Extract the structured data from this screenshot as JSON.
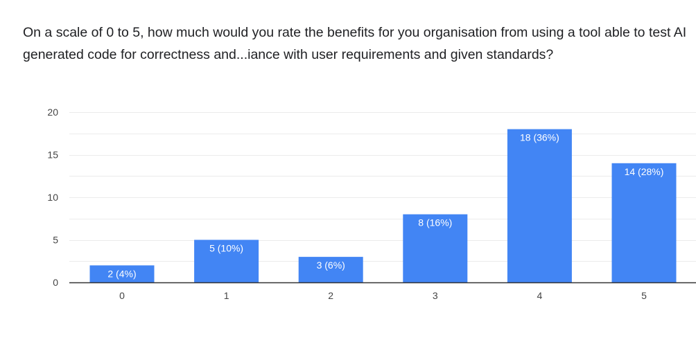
{
  "question": "On a scale of 0 to 5, how much would you rate the benefits for you organisation from using a tool able to test AI generated code for correctness and...iance with user requirements and given standards?",
  "chart_data": {
    "type": "bar",
    "title": "On a scale of 0 to 5, how much would you rate the benefits for you organisation from using a tool able to test AI generated code for correctness and...iance with user requirements and given standards?",
    "categories": [
      "0",
      "1",
      "2",
      "3",
      "4",
      "5"
    ],
    "values": [
      2,
      5,
      3,
      8,
      18,
      14
    ],
    "data_labels": [
      "2 (4%)",
      "5 (10%)",
      "3 (6%)",
      "8 (16%)",
      "18 (36%)",
      "14 (28%)"
    ],
    "y_ticks": [
      "0",
      "5",
      "10",
      "15",
      "20"
    ],
    "ylim": [
      0,
      20
    ],
    "grid": true,
    "legend": "none",
    "bar_color": "#4285F4",
    "grid_color": "#ebebeb",
    "axis_color": "#333333"
  }
}
